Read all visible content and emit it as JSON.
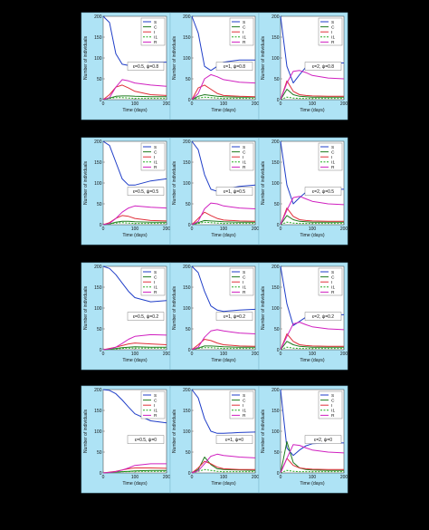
{
  "figure": {
    "background": "#000000",
    "panel_color": "#aee3f5",
    "plot_color": "#ffffff",
    "legend_entries": [
      "S",
      "C",
      "I",
      "I1",
      "R"
    ]
  },
  "series_colors": {
    "S": "#1f3ec8",
    "C": "#1f7a1f",
    "I": "#e0303a",
    "I1": "#22aa22",
    "R": "#d020c0"
  },
  "axis_text": {
    "xlabel": "Time (days)",
    "ylabel": "Number of individuals"
  },
  "chart_data": [
    {
      "type": "line",
      "row": 1,
      "col": 1,
      "annotation": "ε=0.5, ψ=0.8",
      "x": [
        0,
        20,
        40,
        60,
        80,
        100,
        150,
        200
      ],
      "xlim": [
        0,
        200
      ],
      "ylim": [
        0,
        200
      ],
      "series": [
        {
          "name": "S",
          "values": [
            200,
            185,
            110,
            85,
            82,
            86,
            90,
            90
          ]
        },
        {
          "name": "C",
          "values": [
            0,
            4,
            8,
            9,
            9,
            8,
            7,
            7
          ]
        },
        {
          "name": "I",
          "values": [
            0,
            12,
            30,
            35,
            28,
            20,
            12,
            10
          ]
        },
        {
          "name": "I1",
          "values": [
            0,
            3,
            5,
            5,
            4,
            3,
            3,
            3
          ]
        },
        {
          "name": "R",
          "values": [
            0,
            5,
            30,
            48,
            45,
            40,
            35,
            32
          ]
        }
      ]
    },
    {
      "type": "line",
      "row": 1,
      "col": 2,
      "annotation": "ε=1, ψ=0.8",
      "x": [
        0,
        20,
        40,
        60,
        80,
        100,
        150,
        200
      ],
      "xlim": [
        0,
        200
      ],
      "ylim": [
        0,
        200
      ],
      "series": [
        {
          "name": "S",
          "values": [
            200,
            160,
            80,
            70,
            80,
            90,
            95,
            95
          ]
        },
        {
          "name": "C",
          "values": [
            0,
            8,
            12,
            10,
            8,
            7,
            6,
            6
          ]
        },
        {
          "name": "I",
          "values": [
            0,
            28,
            35,
            25,
            15,
            10,
            8,
            7
          ]
        },
        {
          "name": "I1",
          "values": [
            0,
            4,
            6,
            5,
            4,
            3,
            3,
            3
          ]
        },
        {
          "name": "R",
          "values": [
            0,
            15,
            50,
            60,
            55,
            48,
            42,
            40
          ]
        }
      ]
    },
    {
      "type": "line",
      "row": 1,
      "col": 3,
      "annotation": "ε=2, ψ=0.8",
      "x": [
        0,
        20,
        40,
        60,
        80,
        100,
        150,
        200
      ],
      "xlim": [
        0,
        200
      ],
      "ylim": [
        0,
        200
      ],
      "series": [
        {
          "name": "S",
          "values": [
            200,
            80,
            40,
            60,
            78,
            85,
            88,
            88
          ]
        },
        {
          "name": "C",
          "values": [
            0,
            25,
            12,
            8,
            7,
            6,
            6,
            6
          ]
        },
        {
          "name": "I",
          "values": [
            0,
            45,
            20,
            12,
            10,
            9,
            8,
            8
          ]
        },
        {
          "name": "I1",
          "values": [
            0,
            6,
            4,
            3,
            3,
            3,
            3,
            3
          ]
        },
        {
          "name": "R",
          "values": [
            0,
            40,
            68,
            70,
            65,
            58,
            52,
            50
          ]
        }
      ]
    },
    {
      "type": "line",
      "row": 2,
      "col": 1,
      "annotation": "ε=0.5, ψ=0.5",
      "x": [
        0,
        20,
        40,
        60,
        80,
        100,
        150,
        200
      ],
      "xlim": [
        0,
        200
      ],
      "ylim": [
        0,
        200
      ],
      "series": [
        {
          "name": "S",
          "values": [
            200,
            190,
            150,
            110,
            95,
            95,
            105,
            110
          ]
        },
        {
          "name": "C",
          "values": [
            0,
            2,
            6,
            8,
            8,
            7,
            6,
            6
          ]
        },
        {
          "name": "I",
          "values": [
            0,
            5,
            15,
            22,
            20,
            15,
            10,
            9
          ]
        },
        {
          "name": "I1",
          "values": [
            0,
            2,
            4,
            5,
            4,
            3,
            3,
            3
          ]
        },
        {
          "name": "R",
          "values": [
            0,
            3,
            15,
            30,
            40,
            45,
            42,
            40
          ]
        }
      ]
    },
    {
      "type": "line",
      "row": 2,
      "col": 2,
      "annotation": "ε=1, ψ=0.5",
      "x": [
        0,
        20,
        40,
        60,
        80,
        100,
        150,
        200
      ],
      "xlim": [
        0,
        200
      ],
      "ylim": [
        0,
        200
      ],
      "series": [
        {
          "name": "S",
          "values": [
            200,
            180,
            120,
            85,
            80,
            85,
            92,
            95
          ]
        },
        {
          "name": "C",
          "values": [
            0,
            5,
            10,
            9,
            8,
            7,
            6,
            6
          ]
        },
        {
          "name": "I",
          "values": [
            0,
            15,
            30,
            22,
            15,
            11,
            9,
            8
          ]
        },
        {
          "name": "I1",
          "values": [
            0,
            3,
            6,
            5,
            4,
            3,
            3,
            3
          ]
        },
        {
          "name": "R",
          "values": [
            0,
            8,
            38,
            52,
            50,
            45,
            40,
            38
          ]
        }
      ]
    },
    {
      "type": "line",
      "row": 2,
      "col": 3,
      "annotation": "ε=2, ψ=0.5",
      "x": [
        0,
        20,
        40,
        60,
        80,
        100,
        150,
        200
      ],
      "xlim": [
        0,
        200
      ],
      "ylim": [
        0,
        200
      ],
      "series": [
        {
          "name": "S",
          "values": [
            200,
            95,
            50,
            65,
            78,
            82,
            85,
            85
          ]
        },
        {
          "name": "C",
          "values": [
            0,
            22,
            12,
            8,
            7,
            6,
            6,
            6
          ]
        },
        {
          "name": "I",
          "values": [
            0,
            40,
            20,
            12,
            10,
            9,
            8,
            8
          ]
        },
        {
          "name": "I1",
          "values": [
            0,
            6,
            4,
            3,
            3,
            3,
            3,
            3
          ]
        },
        {
          "name": "R",
          "values": [
            0,
            35,
            65,
            68,
            62,
            56,
            50,
            48
          ]
        }
      ]
    },
    {
      "type": "line",
      "row": 3,
      "col": 1,
      "annotation": "ε=0.5, ψ=0.2",
      "x": [
        0,
        20,
        40,
        60,
        80,
        100,
        150,
        200
      ],
      "xlim": [
        0,
        200
      ],
      "ylim": [
        0,
        200
      ],
      "series": [
        {
          "name": "S",
          "values": [
            200,
            195,
            180,
            160,
            140,
            125,
            115,
            118
          ]
        },
        {
          "name": "C",
          "values": [
            0,
            1,
            3,
            5,
            6,
            7,
            6,
            6
          ]
        },
        {
          "name": "I",
          "values": [
            0,
            3,
            6,
            10,
            14,
            16,
            14,
            12
          ]
        },
        {
          "name": "I1",
          "values": [
            0,
            1,
            2,
            3,
            4,
            4,
            4,
            4
          ]
        },
        {
          "name": "R",
          "values": [
            0,
            2,
            6,
            15,
            25,
            32,
            36,
            35
          ]
        }
      ]
    },
    {
      "type": "line",
      "row": 3,
      "col": 2,
      "annotation": "ε=1, ψ=0.2",
      "x": [
        0,
        20,
        40,
        60,
        80,
        100,
        150,
        200
      ],
      "xlim": [
        0,
        200
      ],
      "ylim": [
        0,
        200
      ],
      "series": [
        {
          "name": "S",
          "values": [
            200,
            185,
            140,
            105,
            95,
            92,
            95,
            97
          ]
        },
        {
          "name": "C",
          "values": [
            0,
            4,
            9,
            9,
            8,
            7,
            6,
            6
          ]
        },
        {
          "name": "I",
          "values": [
            0,
            12,
            25,
            22,
            16,
            12,
            9,
            8
          ]
        },
        {
          "name": "I1",
          "values": [
            0,
            3,
            5,
            5,
            4,
            3,
            3,
            3
          ]
        },
        {
          "name": "R",
          "values": [
            0,
            6,
            30,
            45,
            48,
            45,
            40,
            38
          ]
        }
      ]
    },
    {
      "type": "line",
      "row": 3,
      "col": 3,
      "annotation": "ε=2, ψ=0.2",
      "x": [
        0,
        20,
        40,
        60,
        80,
        100,
        150,
        200
      ],
      "xlim": [
        0,
        200
      ],
      "ylim": [
        0,
        200
      ],
      "series": [
        {
          "name": "S",
          "values": [
            200,
            110,
            58,
            68,
            78,
            82,
            84,
            84
          ]
        },
        {
          "name": "C",
          "values": [
            0,
            20,
            12,
            8,
            7,
            6,
            6,
            6
          ]
        },
        {
          "name": "I",
          "values": [
            0,
            38,
            20,
            12,
            10,
            9,
            8,
            8
          ]
        },
        {
          "name": "I1",
          "values": [
            0,
            6,
            4,
            3,
            3,
            3,
            3,
            3
          ]
        },
        {
          "name": "R",
          "values": [
            0,
            32,
            62,
            66,
            60,
            55,
            50,
            48
          ]
        }
      ]
    },
    {
      "type": "line",
      "row": 4,
      "col": 1,
      "annotation": "ε=0.5, ψ=0",
      "x": [
        0,
        20,
        40,
        60,
        80,
        100,
        150,
        200
      ],
      "xlim": [
        0,
        200
      ],
      "ylim": [
        0,
        200
      ],
      "series": [
        {
          "name": "S",
          "values": [
            200,
            198,
            190,
            175,
            158,
            142,
            125,
            120
          ]
        },
        {
          "name": "C",
          "values": [
            0,
            1,
            2,
            3,
            4,
            5,
            6,
            6
          ]
        },
        {
          "name": "I",
          "values": [
            0,
            2,
            4,
            7,
            10,
            12,
            12,
            11
          ]
        },
        {
          "name": "I1",
          "values": [
            0,
            1,
            2,
            3,
            3,
            4,
            4,
            4
          ]
        },
        {
          "name": "R",
          "values": [
            0,
            1,
            3,
            7,
            12,
            18,
            22,
            22
          ]
        }
      ]
    },
    {
      "type": "line",
      "row": 4,
      "col": 2,
      "annotation": "ε=1, ψ=0",
      "x": [
        0,
        20,
        40,
        60,
        80,
        100,
        150,
        200
      ],
      "xlim": [
        0,
        200
      ],
      "ylim": [
        0,
        200
      ],
      "series": [
        {
          "name": "S",
          "values": [
            200,
            180,
            130,
            100,
            95,
            95,
            97,
            98
          ]
        },
        {
          "name": "C",
          "values": [
            0,
            8,
            38,
            20,
            10,
            8,
            7,
            6
          ]
        },
        {
          "name": "I",
          "values": [
            0,
            12,
            28,
            22,
            14,
            10,
            8,
            8
          ]
        },
        {
          "name": "I1",
          "values": [
            0,
            4,
            8,
            6,
            4,
            3,
            3,
            3
          ]
        },
        {
          "name": "R",
          "values": [
            0,
            5,
            22,
            40,
            45,
            42,
            38,
            36
          ]
        }
      ]
    },
    {
      "type": "line",
      "row": 4,
      "col": 3,
      "annotation": "ε=2, ψ=0",
      "x": [
        0,
        20,
        40,
        60,
        80,
        100,
        150,
        200
      ],
      "xlim": [
        0,
        200
      ],
      "ylim": [
        0,
        200
      ],
      "series": [
        {
          "name": "S",
          "values": [
            200,
            60,
            42,
            55,
            65,
            70,
            72,
            72
          ]
        },
        {
          "name": "C",
          "values": [
            0,
            75,
            25,
            12,
            8,
            7,
            6,
            6
          ]
        },
        {
          "name": "I",
          "values": [
            0,
            35,
            18,
            12,
            10,
            9,
            8,
            8
          ]
        },
        {
          "name": "I1",
          "values": [
            0,
            6,
            4,
            3,
            3,
            3,
            3,
            3
          ]
        },
        {
          "name": "R",
          "values": [
            0,
            35,
            68,
            66,
            60,
            55,
            50,
            48
          ]
        }
      ]
    }
  ]
}
